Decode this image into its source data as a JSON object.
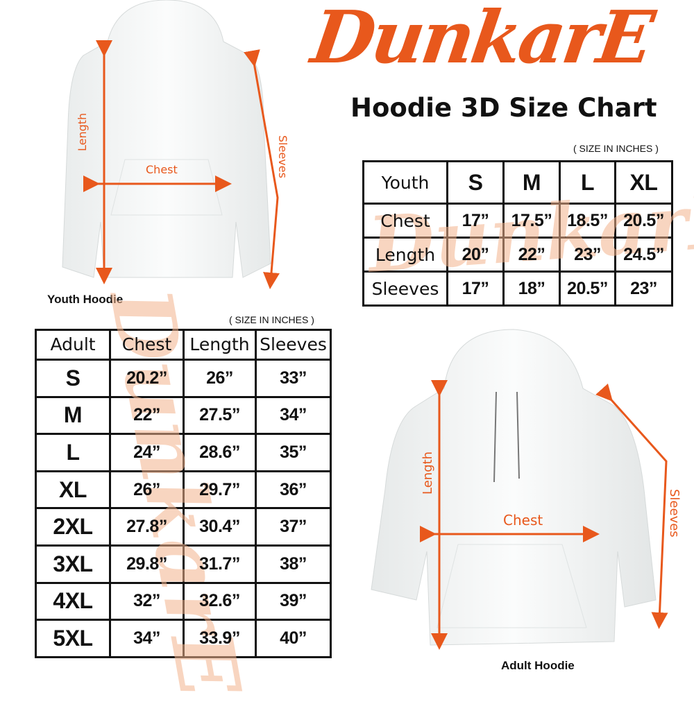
{
  "logo": {
    "text": "DunkarE",
    "color": "#e8581c"
  },
  "title": "Hoodie 3D Size Chart",
  "watermark_text": "DunkarE",
  "youth": {
    "caption": "Youth Hoodie",
    "labels": {
      "length": "Length",
      "chest": "Chest",
      "sleeves": "Sleeves"
    },
    "note": "( SIZE IN INCHES )",
    "headers": [
      "Youth",
      "S",
      "M",
      "L",
      "XL"
    ],
    "rows": [
      [
        "Chest",
        "17”",
        "17.5”",
        "18.5”",
        "20.5”"
      ],
      [
        "Length",
        "20”",
        "22”",
        "23”",
        "24.5”"
      ],
      [
        "Sleeves",
        "17”",
        "18”",
        "20.5”",
        "23”"
      ]
    ]
  },
  "adult": {
    "caption": "Adult Hoodie",
    "labels": {
      "length": "Length",
      "chest": "Chest",
      "sleeves": "Sleeves"
    },
    "note": "( SIZE IN INCHES )",
    "headers": [
      "Adult",
      "Chest",
      "Length",
      "Sleeves"
    ],
    "rows": [
      [
        "S",
        "20.2”",
        "26”",
        "33”"
      ],
      [
        "M",
        "22”",
        "27.5”",
        "34”"
      ],
      [
        "L",
        "24”",
        "28.6”",
        "35”"
      ],
      [
        "XL",
        "26”",
        "29.7”",
        "36”"
      ],
      [
        "2XL",
        "27.8”",
        "30.4”",
        "37”"
      ],
      [
        "3XL",
        "29.8”",
        "31.7”",
        "38”"
      ],
      [
        "4XL",
        "32”",
        "32.6”",
        "39”"
      ],
      [
        "5XL",
        "34”",
        "33.9”",
        "40”"
      ]
    ]
  },
  "colors": {
    "accent": "#e8581c",
    "watermark": "#f3b48e"
  }
}
